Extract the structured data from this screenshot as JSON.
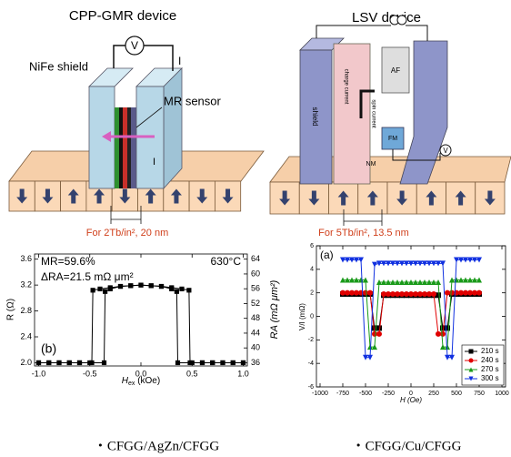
{
  "figure_top": {
    "left": {
      "title": "CPP-GMR device",
      "labels": [
        "NiFe shield",
        "V",
        "I",
        "MR sensor",
        "I"
      ],
      "caption": "For 2Tb/in², 20 nm"
    },
    "right": {
      "title": "LSV device",
      "labels": [
        "shield",
        "charge current",
        "spin current",
        "AF",
        "FM",
        "NM",
        "V"
      ],
      "caption": "For 5Tb/in², 13.5 nm"
    }
  },
  "chart_data": [
    {
      "type": "line",
      "x_label": "H",
      "x_label_sub": "ex",
      "x_label_unit": " (kOe)",
      "y_label": "R (Ω)",
      "y2_label": "RA (mΩ μm²)",
      "annotations": [
        "MR=59.6%",
        "ΔRA=21.5 mΩ μm²",
        "630°C",
        "(b)"
      ],
      "xlim": [
        -1.04,
        1.04
      ],
      "xticks": [
        {
          "value": -1,
          "label": "-1.0"
        },
        {
          "value": -0.5,
          "label": "-0.5"
        },
        {
          "value": 0,
          "label": "0.0"
        },
        {
          "value": 0.5,
          "label": "0.5"
        },
        {
          "value": 1,
          "label": "1.0"
        }
      ],
      "ylim": [
        1.95,
        3.68
      ],
      "yticks": [
        {
          "value": 2,
          "label": "2.0"
        },
        {
          "value": 2.4,
          "label": "2.4"
        },
        {
          "value": 2.8,
          "label": "2.8"
        },
        {
          "value": 3.2,
          "label": "3.2"
        },
        {
          "value": 3.6,
          "label": "3.6"
        }
      ],
      "y2lim": [
        35.125,
        65.4
      ],
      "y2ticks": [
        36,
        40,
        44,
        48,
        52,
        56,
        60,
        64
      ],
      "series": [
        {
          "color": "#000000",
          "marker": "square",
          "x": [
            1.0,
            0.9,
            0.8,
            0.7,
            0.6,
            0.5,
            0.36,
            0.35,
            0.3,
            0.2,
            0.1,
            0.0,
            -0.1,
            -0.2,
            -0.3,
            -0.4,
            -0.47,
            -0.48,
            -0.6,
            -0.7,
            -0.8,
            -0.9,
            -1.0
          ],
          "values": [
            2.0,
            2.0,
            2.0,
            2.0,
            2.0,
            2.0,
            2.0,
            3.1,
            3.14,
            3.18,
            3.19,
            3.2,
            3.19,
            3.18,
            3.16,
            3.14,
            3.12,
            2.0,
            2.0,
            2.0,
            2.0,
            2.0,
            2.0
          ]
        },
        {
          "color": "#000000",
          "marker": "square",
          "x": [
            -1.0,
            -0.9,
            -0.8,
            -0.7,
            -0.6,
            -0.5,
            -0.36,
            -0.35,
            -0.3,
            -0.2,
            -0.1,
            0.0,
            0.1,
            0.2,
            0.3,
            0.4,
            0.47,
            0.48,
            0.6,
            0.7,
            0.8,
            0.9,
            1.0
          ],
          "values": [
            2.0,
            2.0,
            2.0,
            2.0,
            2.0,
            2.0,
            2.0,
            3.1,
            3.14,
            3.18,
            3.19,
            3.2,
            3.19,
            3.18,
            3.16,
            3.14,
            3.12,
            2.0,
            2.0,
            2.0,
            2.0,
            2.0,
            2.0
          ]
        }
      ]
    },
    {
      "type": "line",
      "x_label": "H (Oe)",
      "y_label": "V/I (mΩ)",
      "annotations": [
        "(a)"
      ],
      "legend": "lower right",
      "xlim": [
        -1040,
        1040
      ],
      "xticks": [
        -1000,
        -750,
        -500,
        -250,
        0,
        250,
        500,
        750,
        1000
      ],
      "ylim": [
        -6,
        6
      ],
      "yticks": [
        -6,
        -4,
        -2,
        0,
        2,
        4,
        6
      ],
      "series": [
        {
          "name": "210 s",
          "color": "#000000",
          "marker": "square",
          "x": [
            -750,
            -700,
            -650,
            -600,
            -550,
            -500,
            -450,
            -400,
            -350,
            -300,
            -250,
            -200,
            -150,
            -100,
            -50,
            0,
            50,
            100,
            150,
            200,
            250,
            300,
            350,
            400,
            450,
            500,
            550,
            600,
            650,
            700,
            750
          ],
          "values": [
            1.9,
            1.9,
            1.9,
            1.9,
            1.9,
            1.9,
            1.9,
            -1.0,
            -1.0,
            1.8,
            1.8,
            1.8,
            1.8,
            1.8,
            1.8,
            1.8,
            1.8,
            1.8,
            1.8,
            1.8,
            1.8,
            1.8,
            -1.0,
            -1.0,
            1.9,
            1.9,
            1.9,
            1.9,
            1.9,
            1.9,
            1.9
          ]
        },
        {
          "name": "240 s",
          "color": "#e00000",
          "marker": "circle",
          "x": [
            -750,
            -700,
            -650,
            -600,
            -550,
            -500,
            -450,
            -400,
            -350,
            -300,
            -250,
            -200,
            -150,
            -100,
            -50,
            0,
            50,
            100,
            150,
            200,
            250,
            300,
            350,
            400,
            450,
            500,
            550,
            600,
            650,
            700,
            750
          ],
          "values": [
            2.0,
            2.0,
            2.0,
            2.0,
            2.0,
            2.0,
            2.0,
            -1.5,
            -1.5,
            1.9,
            1.9,
            1.9,
            1.9,
            1.9,
            1.9,
            1.9,
            1.9,
            1.9,
            1.9,
            1.9,
            1.9,
            -1.5,
            -1.5,
            2.0,
            2.0,
            2.0,
            2.0,
            2.0,
            2.0,
            2.0,
            2.0
          ]
        },
        {
          "name": "270 s",
          "color": "#1a9a1a",
          "marker": "triangle",
          "x": [
            -750,
            -700,
            -650,
            -600,
            -550,
            -500,
            -450,
            -400,
            -350,
            -300,
            -250,
            -200,
            -150,
            -100,
            -50,
            0,
            50,
            100,
            150,
            200,
            250,
            300,
            350,
            400,
            450,
            500,
            550,
            600,
            650,
            700,
            750
          ],
          "values": [
            3.1,
            3.1,
            3.1,
            3.1,
            3.1,
            3.1,
            -2.6,
            -2.6,
            2.9,
            2.9,
            2.9,
            2.9,
            2.9,
            2.9,
            2.9,
            2.9,
            2.9,
            2.9,
            2.9,
            2.9,
            2.9,
            2.9,
            -2.6,
            -2.6,
            3.1,
            3.1,
            3.1,
            3.1,
            3.1,
            3.1,
            3.1
          ]
        },
        {
          "name": "300 s",
          "color": "#1030e0",
          "marker": "down-triangle",
          "x": [
            -750,
            -700,
            -650,
            -600,
            -550,
            -500,
            -450,
            -400,
            -350,
            -300,
            -250,
            -200,
            -150,
            -100,
            -50,
            0,
            50,
            100,
            150,
            200,
            250,
            300,
            350,
            400,
            450,
            500,
            550,
            600,
            650,
            700,
            750
          ],
          "values": [
            4.8,
            4.8,
            4.8,
            4.8,
            4.8,
            -3.5,
            -3.5,
            4.4,
            4.5,
            4.5,
            4.5,
            4.5,
            4.5,
            4.5,
            4.5,
            4.5,
            4.5,
            4.5,
            4.5,
            4.5,
            4.5,
            4.5,
            4.5,
            -3.5,
            -3.5,
            4.8,
            4.8,
            4.8,
            4.8,
            4.8,
            4.8
          ]
        }
      ]
    }
  ],
  "captions": [
    "・CFGG/AgZn/CFGG",
    "・CFGG/Cu/CFGG"
  ]
}
